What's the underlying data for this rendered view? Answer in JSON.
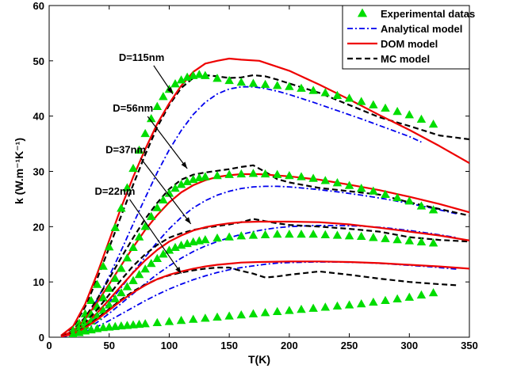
{
  "chart_data": {
    "type": "line",
    "title": "",
    "xlabel": "T(K)",
    "ylabel": "k (W.m⁻¹K⁻¹)",
    "xlim": [
      0,
      350
    ],
    "ylim": [
      0,
      60
    ],
    "xticks": [
      0,
      50,
      100,
      150,
      200,
      250,
      300,
      350
    ],
    "yticks": [
      0,
      10,
      20,
      30,
      40,
      50,
      60
    ],
    "xtick_labels": [
      "0",
      "50",
      "100",
      "150",
      "200",
      "250",
      "300",
      "350"
    ],
    "ytick_labels": [
      "0",
      "10",
      "20",
      "30",
      "40",
      "50",
      "60"
    ],
    "grid": false,
    "legend_position": "top-right",
    "legend": [
      {
        "label": "Experimental datas",
        "style": "marker-triangle",
        "color": "#00dd00"
      },
      {
        "label": "Analytical model",
        "style": "dashdot",
        "color": "#0000ee"
      },
      {
        "label": "DOM model",
        "style": "solid",
        "color": "#ee0000"
      },
      {
        "label": "MC model",
        "style": "dashed",
        "color": "#000000"
      }
    ],
    "annotations": [
      {
        "text": "D=115nm",
        "label_at": [
          58,
          50
        ],
        "arrow_to": [
          103,
          44
        ]
      },
      {
        "text": "D=56nm",
        "label_at": [
          53,
          40.8
        ],
        "arrow_to": [
          115,
          30.5
        ]
      },
      {
        "text": "D=37nm",
        "label_at": [
          47,
          33.3
        ],
        "arrow_to": [
          118,
          20.5
        ]
      },
      {
        "text": "D=22nm",
        "label_at": [
          38,
          25.8
        ],
        "arrow_to": [
          110,
          11.5
        ]
      }
    ],
    "diameters": [
      {
        "name": "D=115nm",
        "experimental": {
          "x": [
            20,
            25,
            30,
            35,
            40,
            45,
            50,
            55,
            60,
            65,
            70,
            75,
            80,
            85,
            90,
            95,
            100,
            105,
            110,
            115,
            120,
            125,
            130,
            140,
            150,
            160,
            170,
            180,
            190,
            200,
            210,
            220,
            230,
            240,
            250,
            260,
            270,
            280,
            290,
            300,
            310,
            320
          ],
          "y": [
            1.2,
            2.5,
            4.2,
            6.6,
            9.5,
            12.8,
            16.3,
            19.8,
            23.3,
            27.0,
            30.5,
            33.8,
            36.8,
            39.5,
            41.7,
            43.5,
            44.8,
            45.8,
            46.5,
            47.0,
            47.3,
            47.5,
            47.3,
            46.8,
            46.4,
            46.1,
            45.9,
            45.7,
            45.5,
            45.3,
            45.0,
            44.6,
            44.2,
            43.7,
            43.2,
            42.6,
            42.0,
            41.4,
            40.8,
            40.2,
            39.4,
            38.5
          ]
        },
        "analytical": {
          "x": [
            10,
            20,
            30,
            40,
            50,
            60,
            70,
            80,
            90,
            100,
            110,
            120,
            130,
            140,
            150,
            160,
            170,
            180,
            190,
            200,
            220,
            240,
            260,
            280,
            300,
            310
          ],
          "y": [
            0.2,
            1.0,
            3.3,
            6.8,
            11.0,
            15.7,
            20.5,
            25.2,
            29.8,
            33.9,
            37.4,
            40.3,
            42.5,
            44.0,
            44.9,
            45.3,
            45.3,
            45.0,
            44.5,
            43.9,
            42.5,
            41.0,
            39.5,
            37.9,
            36.3,
            35.3
          ]
        },
        "dom": {
          "x": [
            10,
            20,
            30,
            40,
            50,
            60,
            70,
            80,
            90,
            100,
            110,
            120,
            130,
            140,
            150,
            160,
            175,
            200,
            225,
            250,
            275,
            300,
            325,
            350
          ],
          "y": [
            0.3,
            2.0,
            6.0,
            11.5,
            17.5,
            23.5,
            29.0,
            34.0,
            38.6,
            42.3,
            45.5,
            48.0,
            49.5,
            50.0,
            50.4,
            50.2,
            50.0,
            48.2,
            45.7,
            43.0,
            40.2,
            37.5,
            34.6,
            31.5
          ]
        },
        "mc": {
          "x": [
            10,
            20,
            30,
            40,
            50,
            60,
            70,
            80,
            90,
            100,
            110,
            120,
            130,
            140,
            150,
            160,
            170,
            180,
            190,
            200,
            225,
            250,
            275,
            300,
            325,
            350
          ],
          "y": [
            0.3,
            1.8,
            5.5,
            10.6,
            16.2,
            22.0,
            27.6,
            33.0,
            38.0,
            42.0,
            45.1,
            46.9,
            47.4,
            47.2,
            46.9,
            47.0,
            47.4,
            47.2,
            46.6,
            45.9,
            44.2,
            42.0,
            39.8,
            38.2,
            36.5,
            35.8
          ]
        }
      },
      {
        "name": "D=56nm",
        "experimental": {
          "x": [
            20,
            25,
            30,
            35,
            40,
            45,
            50,
            55,
            60,
            65,
            70,
            75,
            80,
            85,
            90,
            95,
            100,
            105,
            110,
            115,
            120,
            125,
            130,
            140,
            150,
            160,
            170,
            180,
            190,
            200,
            210,
            220,
            230,
            240,
            250,
            260,
            270,
            280,
            290,
            300,
            310,
            320
          ],
          "y": [
            1.0,
            1.8,
            2.9,
            4.1,
            5.5,
            7.1,
            8.8,
            10.6,
            12.4,
            14.3,
            16.2,
            18.1,
            20.0,
            21.8,
            23.4,
            24.8,
            26.0,
            26.9,
            27.6,
            28.1,
            28.5,
            28.8,
            29.0,
            29.2,
            29.4,
            29.5,
            29.6,
            29.5,
            29.4,
            29.2,
            29.0,
            28.7,
            28.3,
            27.9,
            27.4,
            26.9,
            26.4,
            25.8,
            25.2,
            24.6,
            23.7,
            23.0
          ]
        },
        "analytical": {
          "x": [
            10,
            20,
            30,
            40,
            50,
            60,
            70,
            80,
            90,
            100,
            110,
            120,
            130,
            140,
            150,
            160,
            170,
            180,
            190,
            200,
            220,
            240,
            260,
            280,
            300,
            320,
            340
          ],
          "y": [
            0.1,
            0.6,
            1.9,
            3.9,
            6.3,
            9.0,
            11.8,
            14.5,
            17.2,
            19.6,
            21.7,
            23.4,
            24.7,
            25.7,
            26.4,
            26.9,
            27.2,
            27.3,
            27.3,
            27.2,
            26.8,
            26.3,
            25.7,
            25.0,
            24.2,
            23.3,
            22.3
          ]
        },
        "dom": {
          "x": [
            10,
            20,
            30,
            40,
            50,
            60,
            70,
            80,
            90,
            100,
            110,
            120,
            130,
            140,
            150,
            160,
            175,
            200,
            225,
            250,
            275,
            300,
            325,
            350
          ],
          "y": [
            0.2,
            1.1,
            3.3,
            6.3,
            9.6,
            13.0,
            16.3,
            19.4,
            22.1,
            24.4,
            26.2,
            27.5,
            28.4,
            29.0,
            29.3,
            29.5,
            29.5,
            29.1,
            28.5,
            27.6,
            26.6,
            25.4,
            24.1,
            22.6
          ]
        },
        "mc": {
          "x": [
            10,
            20,
            30,
            40,
            50,
            60,
            70,
            80,
            90,
            100,
            110,
            120,
            130,
            140,
            150,
            160,
            170,
            180,
            190,
            200,
            225,
            250,
            275,
            300,
            325,
            350
          ],
          "y": [
            0.2,
            1.2,
            3.6,
            6.9,
            10.6,
            14.4,
            18.0,
            21.4,
            24.3,
            26.8,
            28.5,
            29.4,
            29.8,
            30.1,
            30.4,
            30.8,
            31.1,
            29.9,
            28.6,
            28.0,
            27.0,
            26.4,
            25.8,
            24.4,
            23.2,
            22.0
          ]
        }
      },
      {
        "name": "D=37nm",
        "experimental": {
          "x": [
            20,
            25,
            30,
            35,
            40,
            45,
            50,
            55,
            60,
            65,
            70,
            75,
            80,
            85,
            90,
            95,
            100,
            105,
            110,
            115,
            120,
            125,
            130,
            140,
            150,
            160,
            170,
            180,
            190,
            200,
            210,
            220,
            230,
            240,
            250,
            260,
            270,
            280,
            290,
            300,
            310,
            320
          ],
          "y": [
            0.8,
            1.4,
            2.1,
            2.9,
            3.8,
            4.8,
            5.8,
            6.9,
            8.0,
            9.1,
            10.2,
            11.3,
            12.3,
            13.3,
            14.2,
            15.0,
            15.7,
            16.2,
            16.6,
            16.9,
            17.2,
            17.4,
            17.6,
            17.9,
            18.1,
            18.3,
            18.4,
            18.5,
            18.6,
            18.6,
            18.6,
            18.6,
            18.5,
            18.4,
            18.3,
            18.2,
            18.0,
            17.8,
            17.6,
            17.4,
            17.2,
            17.0
          ]
        },
        "analytical": {
          "x": [
            10,
            20,
            30,
            40,
            50,
            60,
            70,
            80,
            90,
            100,
            110,
            120,
            130,
            140,
            150,
            160,
            170,
            180,
            190,
            200,
            220,
            240,
            260,
            280,
            300,
            320,
            340
          ],
          "y": [
            0.1,
            0.4,
            1.3,
            2.7,
            4.3,
            6.1,
            7.9,
            9.7,
            11.4,
            12.9,
            14.3,
            15.5,
            16.5,
            17.3,
            18.0,
            18.6,
            19.1,
            19.5,
            19.8,
            20.0,
            20.2,
            20.2,
            20.1,
            19.8,
            19.3,
            18.7,
            18.0
          ]
        },
        "dom": {
          "x": [
            10,
            20,
            30,
            40,
            50,
            60,
            70,
            80,
            90,
            100,
            110,
            120,
            130,
            140,
            150,
            160,
            175,
            200,
            225,
            250,
            275,
            300,
            325,
            350
          ],
          "y": [
            0.1,
            0.8,
            2.3,
            4.4,
            6.8,
            9.3,
            11.7,
            13.9,
            15.8,
            17.3,
            18.4,
            19.3,
            19.9,
            20.3,
            20.6,
            20.8,
            20.9,
            20.9,
            20.8,
            20.4,
            19.8,
            19.1,
            18.4,
            17.5
          ]
        },
        "mc": {
          "x": [
            10,
            20,
            30,
            40,
            50,
            60,
            70,
            80,
            90,
            100,
            110,
            120,
            130,
            140,
            150,
            160,
            170,
            180,
            190,
            200,
            225,
            250,
            275,
            300,
            325,
            350
          ],
          "y": [
            0.1,
            0.9,
            2.6,
            5.0,
            7.7,
            10.4,
            12.9,
            15.0,
            16.7,
            18.0,
            18.8,
            19.4,
            19.8,
            20.1,
            20.4,
            20.8,
            21.4,
            21.0,
            20.6,
            20.3,
            20.0,
            19.6,
            19.1,
            18.1,
            17.6,
            17.3
          ]
        }
      },
      {
        "name": "D=22nm",
        "experimental": {
          "x": [
            20,
            25,
            30,
            35,
            40,
            45,
            50,
            55,
            60,
            65,
            70,
            75,
            80,
            90,
            100,
            110,
            120,
            130,
            140,
            150,
            160,
            170,
            180,
            190,
            200,
            210,
            220,
            230,
            240,
            250,
            260,
            270,
            280,
            290,
            300,
            310,
            320
          ],
          "y": [
            0.5,
            0.8,
            1.1,
            1.3,
            1.5,
            1.7,
            1.8,
            1.9,
            2.0,
            2.1,
            2.2,
            2.3,
            2.4,
            2.6,
            2.8,
            3.0,
            3.2,
            3.4,
            3.6,
            3.8,
            4.0,
            4.2,
            4.4,
            4.6,
            4.8,
            5.0,
            5.2,
            5.4,
            5.6,
            5.8,
            6.0,
            6.3,
            6.6,
            6.9,
            7.2,
            7.6,
            8.0
          ]
        },
        "analytical": {
          "x": [
            10,
            20,
            30,
            40,
            50,
            60,
            70,
            80,
            90,
            100,
            110,
            120,
            130,
            140,
            150,
            160,
            170,
            180,
            190,
            200,
            220,
            240,
            260,
            280,
            300,
            320,
            340
          ],
          "y": [
            0.1,
            0.3,
            1.0,
            1.9,
            3.0,
            4.2,
            5.4,
            6.6,
            7.7,
            8.7,
            9.6,
            10.4,
            11.1,
            11.7,
            12.2,
            12.6,
            12.9,
            13.2,
            13.4,
            13.5,
            13.6,
            13.6,
            13.5,
            13.3,
            13.0,
            12.7,
            12.3
          ]
        },
        "dom": {
          "x": [
            10,
            20,
            30,
            40,
            50,
            60,
            70,
            80,
            90,
            100,
            110,
            120,
            130,
            140,
            150,
            160,
            175,
            200,
            225,
            250,
            275,
            300,
            325,
            350
          ],
          "y": [
            0.1,
            0.6,
            1.7,
            3.2,
            4.9,
            6.6,
            8.1,
            9.4,
            10.5,
            11.3,
            11.9,
            12.4,
            12.8,
            13.1,
            13.3,
            13.5,
            13.6,
            13.7,
            13.7,
            13.6,
            13.4,
            13.1,
            12.8,
            12.4
          ]
        },
        "mc": {
          "x": [
            10,
            20,
            30,
            40,
            50,
            60,
            70,
            80,
            90,
            100,
            110,
            120,
            130,
            140,
            150,
            160,
            170,
            180,
            190,
            200,
            225,
            250,
            275,
            300,
            325,
            340
          ],
          "y": [
            0.1,
            0.7,
            1.8,
            3.4,
            5.1,
            6.8,
            8.3,
            9.5,
            10.5,
            11.2,
            11.7,
            12.1,
            12.4,
            12.6,
            12.6,
            12.0,
            11.5,
            10.8,
            11.0,
            11.3,
            11.9,
            11.3,
            10.6,
            10.0,
            9.6,
            9.4
          ]
        }
      }
    ]
  },
  "colors": {
    "experimental": "#00dd00",
    "analytical": "#0000ee",
    "dom": "#ee0000",
    "mc": "#000000"
  }
}
